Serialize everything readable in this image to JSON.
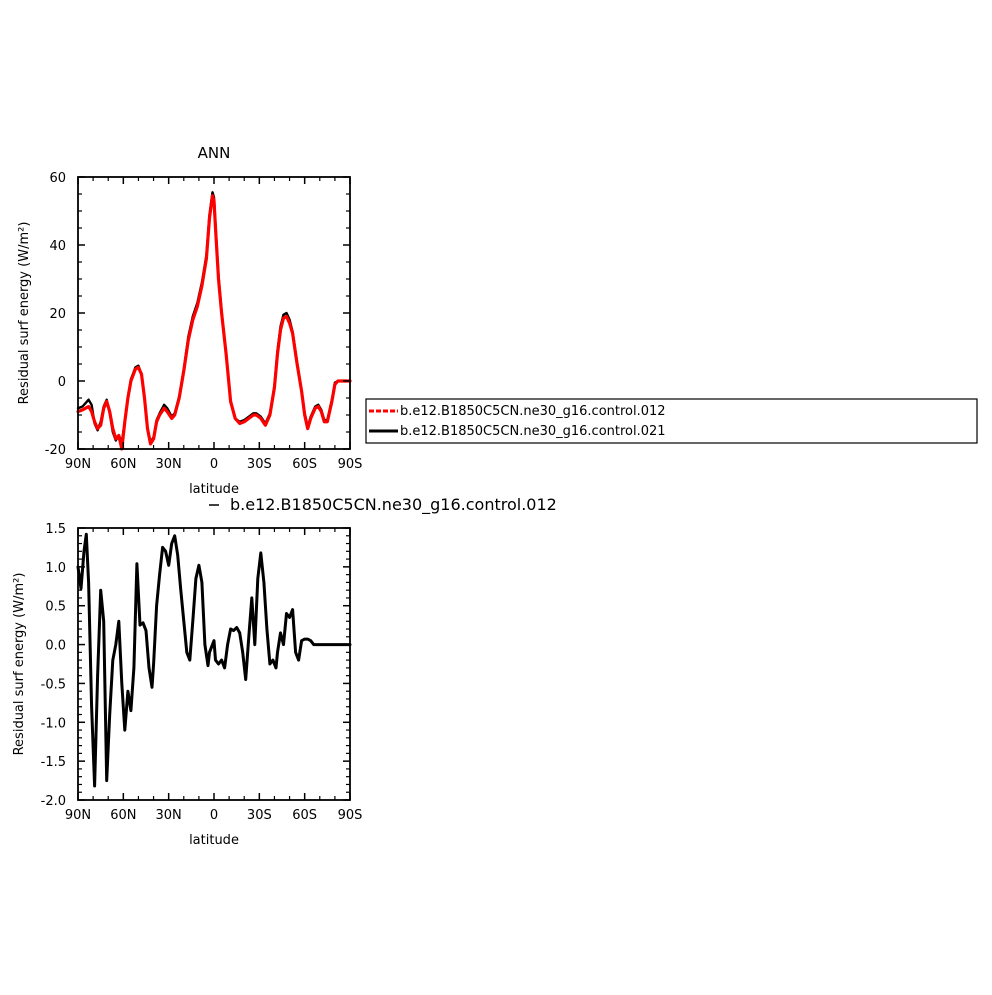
{
  "chart_data": [
    {
      "type": "line",
      "title": "ANN",
      "xlabel": "latitude",
      "ylabel": "Residual surf energy (W/m²)",
      "x_ticks": [
        "90N",
        "60N",
        "30N",
        "0",
        "30S",
        "60S",
        "90S"
      ],
      "y_ticks": [
        "-20",
        "0",
        "20",
        "40",
        "60"
      ],
      "xlim": [
        90,
        -90
      ],
      "ylim": [
        -20,
        60
      ],
      "legend_position": "right",
      "series": [
        {
          "name": "b.e12.B1850C5CN.ne30_g16.control.012",
          "color": "#ff0000",
          "x": [
            90,
            87,
            85,
            83,
            81,
            79,
            77,
            75,
            73,
            71,
            69,
            67,
            65,
            63,
            61,
            59,
            57,
            55,
            52,
            50,
            48,
            46,
            44,
            42,
            40,
            38,
            36,
            33,
            31,
            28,
            26,
            23,
            20,
            17,
            14,
            11,
            8,
            5,
            3,
            1,
            0,
            -1,
            -3,
            -5,
            -8,
            -11,
            -14,
            -17,
            -20,
            -23,
            -26,
            -28,
            -31,
            -34,
            -37,
            -40,
            -42,
            -44,
            -46,
            -48,
            -50,
            -52,
            -55,
            -58,
            -60,
            -62,
            -64,
            -67,
            -69,
            -71,
            -73,
            -75,
            -78,
            -80,
            -82,
            -85,
            -88,
            -90
          ],
          "y": [
            -9,
            -8.5,
            -8,
            -7.5,
            -9,
            -12,
            -14,
            -13,
            -8,
            -6,
            -9,
            -14,
            -17,
            -16,
            -20,
            -12,
            -5,
            0,
            3.5,
            4,
            2,
            -5,
            -14,
            -18.5,
            -17,
            -12,
            -10,
            -8,
            -9,
            -11,
            -10,
            -5,
            3,
            12,
            18,
            22,
            28,
            36,
            48,
            54.5,
            53,
            45,
            30,
            20,
            8,
            -6,
            -11,
            -12.5,
            -12,
            -11,
            -10,
            -10,
            -11,
            -13,
            -10,
            -2,
            8,
            15,
            18.5,
            19,
            17,
            14,
            5,
            -3,
            -10,
            -14,
            -11,
            -8,
            -7.5,
            -9,
            -12,
            -12,
            -6,
            -1,
            0,
            0,
            0,
            0
          ]
        },
        {
          "name": "b.e12.B1850C5CN.ne30_g16.control.021",
          "color": "#000000",
          "x": [
            90,
            87,
            85,
            83,
            81,
            79,
            77,
            75,
            73,
            71,
            69,
            67,
            65,
            63,
            61,
            59,
            57,
            55,
            52,
            50,
            48,
            46,
            44,
            42,
            40,
            38,
            36,
            33,
            31,
            28,
            26,
            23,
            20,
            17,
            14,
            11,
            8,
            5,
            3,
            1,
            0,
            -1,
            -3,
            -5,
            -8,
            -11,
            -14,
            -17,
            -20,
            -23,
            -26,
            -28,
            -31,
            -34,
            -37,
            -40,
            -42,
            -44,
            -46,
            -48,
            -50,
            -52,
            -55,
            -58,
            -60,
            -62,
            -64,
            -67,
            -69,
            -71,
            -73,
            -75,
            -78,
            -80,
            -82,
            -85,
            -88,
            -90
          ],
          "y": [
            -8,
            -7.5,
            -6.5,
            -5.5,
            -7,
            -12.5,
            -14.5,
            -12,
            -7.5,
            -5.5,
            -9.5,
            -15,
            -17.5,
            -16,
            -18,
            -12,
            -5,
            0.5,
            4,
            4.5,
            2,
            -5,
            -14,
            -18,
            -16.5,
            -11.5,
            -9.5,
            -7,
            -8,
            -10.5,
            -9.5,
            -4.5,
            3.5,
            13,
            19,
            23,
            29,
            37,
            49,
            55.5,
            54,
            46,
            31,
            20.5,
            8,
            -6,
            -11,
            -12,
            -11.5,
            -10.5,
            -9.5,
            -9.5,
            -10.5,
            -12.5,
            -9.5,
            -1.5,
            9,
            16,
            19.5,
            20,
            18,
            14.5,
            5.5,
            -3,
            -9.5,
            -13.5,
            -10.5,
            -7.5,
            -7,
            -8.5,
            -11.5,
            -11.5,
            -5.5,
            -0.5,
            0,
            0,
            0,
            0
          ]
        }
      ]
    },
    {
      "type": "line",
      "title": "b.e12.B1850C5CN.ne30_g16.control.012",
      "xlabel": "latitude",
      "ylabel": "Residual surf energy (W/m²)",
      "x_ticks": [
        "90N",
        "60N",
        "30N",
        "0",
        "30S",
        "60S",
        "90S"
      ],
      "y_ticks": [
        "-2.0",
        "-1.5",
        "-1.0",
        "-0.5",
        "0.0",
        "0.5",
        "1.0",
        "1.5"
      ],
      "xlim": [
        90,
        -90
      ],
      "ylim": [
        -2.0,
        1.5
      ],
      "series": [
        {
          "color": "#000000",
          "x": [
            90,
            88,
            86,
            84.5,
            83,
            81,
            79,
            77,
            75,
            73,
            71,
            69,
            67,
            65,
            63,
            61,
            59,
            57,
            55,
            53,
            51,
            49,
            47,
            45,
            43,
            41,
            40,
            38,
            36,
            34,
            32,
            30,
            28,
            26,
            24,
            22,
            20,
            18,
            16,
            14,
            12,
            10,
            8,
            6,
            4,
            3,
            1,
            0,
            -1,
            -3,
            -5,
            -7,
            -9,
            -11,
            -13,
            -15,
            -17,
            -19,
            -21,
            -23,
            -25,
            -27,
            -29,
            -31,
            -33,
            -35,
            -37,
            -39,
            -41,
            -42,
            -44,
            -46,
            -48,
            -50,
            -52,
            -54,
            -56,
            -58,
            -60,
            -62,
            -64,
            -66,
            -68,
            -70,
            -72,
            -74,
            -76,
            -78,
            -80,
            -82,
            -84,
            -86,
            -88,
            -90
          ],
          "y": [
            1.0,
            0.72,
            1.2,
            1.42,
            0.8,
            -0.8,
            -1.82,
            -0.4,
            0.7,
            0.3,
            -1.75,
            -0.9,
            -0.2,
            0.0,
            0.3,
            -0.5,
            -1.1,
            -0.6,
            -0.85,
            -0.3,
            1.04,
            0.25,
            0.28,
            0.18,
            -0.3,
            -0.55,
            -0.25,
            0.5,
            0.9,
            1.25,
            1.2,
            1.02,
            1.3,
            1.4,
            1.15,
            0.7,
            0.3,
            -0.1,
            -0.2,
            0.3,
            0.85,
            1.02,
            0.8,
            0.0,
            -0.27,
            -0.1,
            0.0,
            0.05,
            -0.2,
            -0.25,
            -0.2,
            -0.3,
            0.0,
            0.2,
            0.18,
            0.22,
            0.15,
            -0.1,
            -0.45,
            0.1,
            0.6,
            0.0,
            0.85,
            1.18,
            0.8,
            0.2,
            -0.25,
            -0.2,
            -0.3,
            -0.1,
            0.15,
            0.0,
            0.4,
            0.35,
            0.45,
            -0.1,
            -0.2,
            0.05,
            0.07,
            0.07,
            0.05,
            0.0,
            0.0,
            0.0,
            0.0,
            0.0,
            0.0,
            0.0,
            0.0,
            0.0,
            0.0,
            0.0,
            0.0,
            0.0
          ]
        }
      ]
    }
  ]
}
